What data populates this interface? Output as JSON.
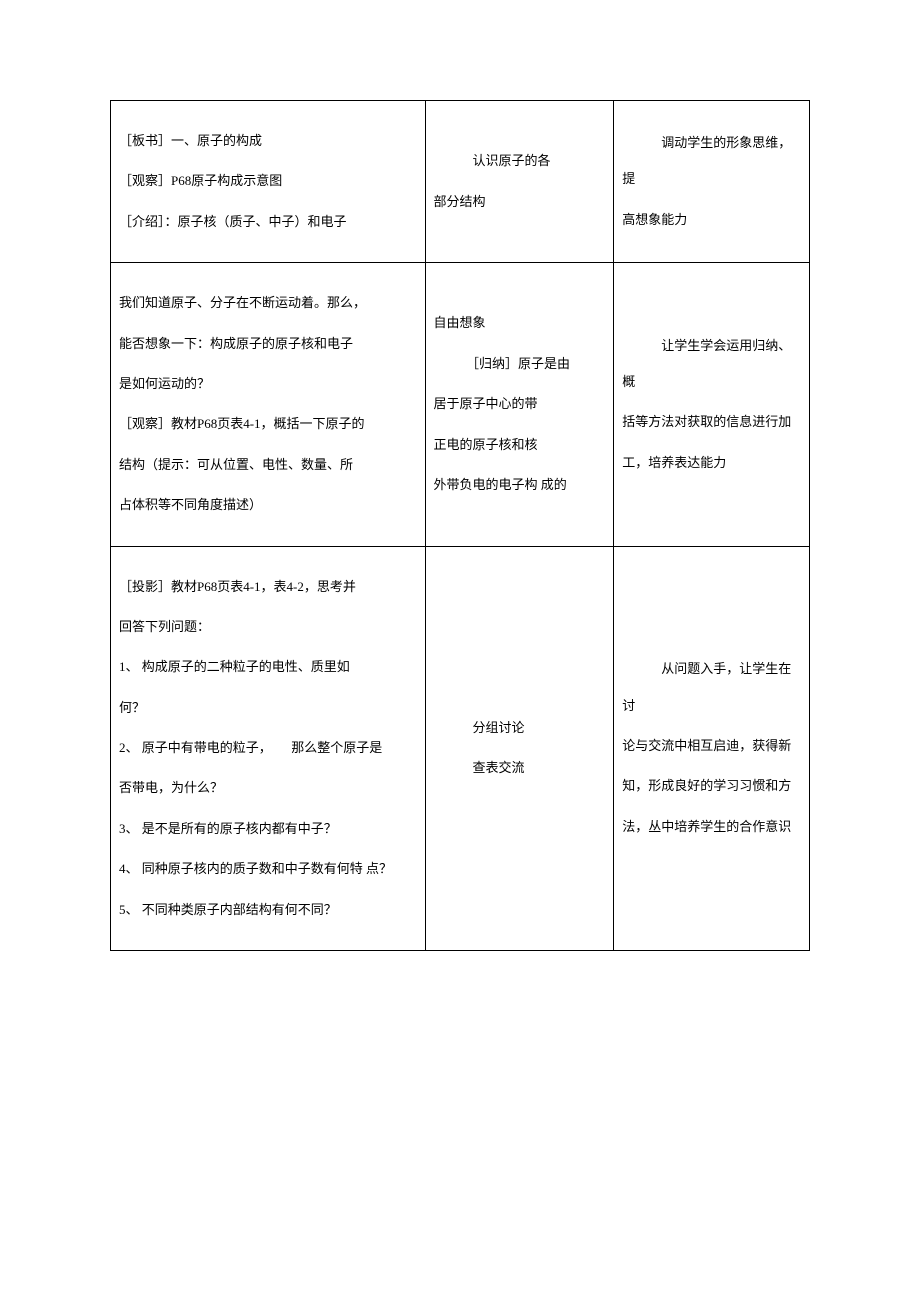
{
  "table": {
    "rows": [
      {
        "col1_lines": [
          "［板书］一、原子的构成",
          "",
          "［观察］P68原子构成示意图",
          "",
          "［介绍］：原子核（质子、中子）和电子"
        ],
        "col2_lines": [
          "　　　认识原子的各",
          "",
          "部分结构"
        ],
        "col3_lines": [
          "　　　调动学生的形象思维，提",
          "",
          "高想象能力"
        ]
      },
      {
        "col1_lines": [
          "我们知道原子、分子在不断运动着。那么，",
          "",
          "能否想象一下：构成原子的原子核和电子",
          "",
          "是如何运动的？",
          "",
          "［观察］教材P68页表4-1，概括一下原子的",
          "",
          "结构（提示：可从位置、电性、数量、所",
          "",
          "占体积等不同角度描述）"
        ],
        "col2_lines": [
          "自由想象",
          "",
          "　　　［归纳］原子是由",
          "",
          "居于原子中心的带",
          "",
          "正电的原子核和核",
          "",
          "外带负电的电子构 成的"
        ],
        "col3_lines": [
          "　　　让学生学会运用归纳、概",
          "",
          "括等方法对获取的信息进行加",
          "",
          "工，培养表达能力"
        ]
      },
      {
        "col1_lines": [
          "",
          "［投影］教材P68页表4-1，表4-2，思考并",
          "",
          "回答下列问题：",
          "",
          "1、 构成原子的二种粒子的电性、质里如",
          "",
          "何？",
          "",
          "2、 原子中有带电的粒子，　　那么整个原子是",
          "",
          "否带电，为什么？",
          "",
          "3、 是不是所有的原子核内都有中子？",
          "",
          "4、 同种原子核内的质子数和中子数有何特 点？",
          "",
          "5、 不同种类原子内部结构有何不同？"
        ],
        "col2_lines": [
          "　　　分组讨论",
          "",
          "",
          "",
          "",
          "　　　查表交流"
        ],
        "col3_lines": [
          "　　　从问题入手，让学生在讨",
          "",
          "论与交流中相互启迪，获得新",
          "",
          "知，形成良好的学习习惯和方",
          "",
          "法，丛中培养学生的合作意识"
        ]
      }
    ]
  }
}
